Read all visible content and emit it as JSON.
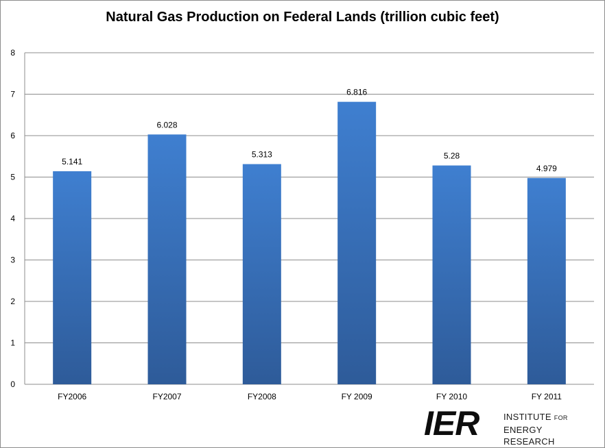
{
  "chart_data": {
    "type": "bar",
    "title": "Natural Gas Production on Federal Lands (trillion cubic feet)",
    "categories": [
      "FY2006",
      "FY2007",
      "FY2008",
      "FY 2009",
      "FY 2010",
      "FY 2011"
    ],
    "values": [
      5.141,
      6.028,
      5.313,
      6.816,
      5.28,
      4.979
    ],
    "data_labels": [
      "5.141",
      "6.028",
      "5.313",
      "6.816",
      "5.28",
      "4.979"
    ],
    "xlabel": "",
    "ylabel": "",
    "ylim": [
      0,
      8
    ],
    "yticks": [
      "0",
      "1",
      "2",
      "3",
      "4",
      "5",
      "6",
      "7",
      "8"
    ],
    "grid": true,
    "legend": "none",
    "bar_color_top": "#3f7fd0",
    "bar_color_bottom": "#2e5b99"
  },
  "logo": {
    "mark": "IER",
    "line1_big": "INSTITUTE",
    "line1_small": "FOR",
    "line2": "ENERGY RESEARCH"
  }
}
